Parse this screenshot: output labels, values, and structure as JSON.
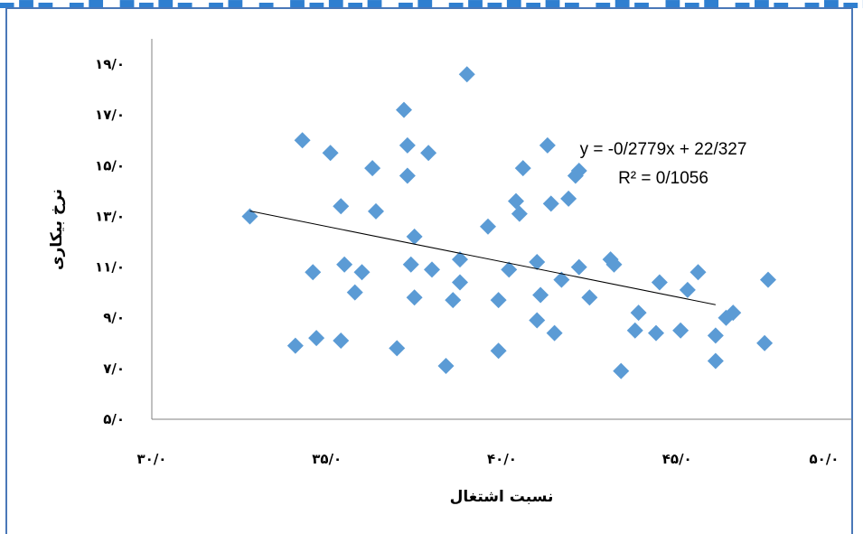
{
  "colors": {
    "marker": "#5b9bd5",
    "trendline": "#000000",
    "axis": "#808080",
    "frame": "#4a78b8",
    "banner": "#2f7fd0"
  },
  "chart_data": {
    "type": "scatter",
    "xlabel": "نسبت اشتغال",
    "ylabel": "نرخ بیکاری",
    "xlim": [
      30,
      50
    ],
    "ylim": [
      5,
      20
    ],
    "grid": false,
    "legend": "none",
    "x_ticks": [
      "۳۰/۰",
      "۳۵/۰",
      "۴۰/۰",
      "۴۵/۰",
      "۵۰/۰"
    ],
    "x_tick_values": [
      30,
      35,
      40,
      45,
      50
    ],
    "y_ticks": [
      "۵/۰",
      "۷/۰",
      "۹/۰",
      "۱۱/۰",
      "۱۳/۰",
      "۱۵/۰",
      "۱۷/۰",
      "۱۹/۰"
    ],
    "y_tick_values": [
      5,
      7,
      9,
      11,
      13,
      15,
      17,
      19
    ],
    "trendline": {
      "equation": "y = -0/2779x + 22/327",
      "r2": "R² = 0/1056",
      "slope": -0.2779,
      "intercept": 22.327,
      "x_range": [
        32.8,
        46.1
      ]
    },
    "points": [
      [
        32.8,
        13.0
      ],
      [
        34.1,
        7.9
      ],
      [
        34.3,
        16.0
      ],
      [
        34.6,
        10.8
      ],
      [
        34.7,
        8.2
      ],
      [
        35.1,
        15.5
      ],
      [
        35.4,
        13.4
      ],
      [
        35.4,
        8.1
      ],
      [
        35.5,
        11.1
      ],
      [
        35.8,
        10.0
      ],
      [
        36.0,
        10.8
      ],
      [
        36.3,
        14.9
      ],
      [
        36.4,
        13.2
      ],
      [
        37.0,
        7.8
      ],
      [
        37.2,
        17.2
      ],
      [
        37.3,
        15.8
      ],
      [
        37.3,
        14.6
      ],
      [
        37.4,
        11.1
      ],
      [
        37.5,
        9.8
      ],
      [
        37.5,
        12.2
      ],
      [
        37.9,
        15.5
      ],
      [
        38.0,
        10.9
      ],
      [
        38.4,
        7.1
      ],
      [
        38.6,
        9.7
      ],
      [
        38.8,
        10.4
      ],
      [
        38.8,
        11.3
      ],
      [
        39.0,
        18.6
      ],
      [
        39.6,
        12.6
      ],
      [
        39.9,
        9.7
      ],
      [
        39.9,
        7.7
      ],
      [
        40.2,
        10.9
      ],
      [
        40.4,
        13.6
      ],
      [
        40.5,
        13.1
      ],
      [
        40.6,
        14.9
      ],
      [
        41.0,
        8.9
      ],
      [
        41.0,
        11.2
      ],
      [
        41.1,
        9.9
      ],
      [
        41.3,
        15.8
      ],
      [
        41.4,
        13.5
      ],
      [
        41.5,
        8.4
      ],
      [
        41.7,
        10.5
      ],
      [
        41.9,
        13.7
      ],
      [
        42.1,
        14.6
      ],
      [
        42.2,
        11.0
      ],
      [
        42.2,
        14.8
      ],
      [
        42.5,
        9.8
      ],
      [
        43.1,
        11.3
      ],
      [
        43.2,
        11.1
      ],
      [
        43.4,
        6.9
      ],
      [
        43.8,
        8.5
      ],
      [
        43.9,
        9.2
      ],
      [
        44.4,
        8.4
      ],
      [
        44.5,
        10.4
      ],
      [
        45.1,
        8.5
      ],
      [
        45.3,
        10.1
      ],
      [
        45.6,
        10.8
      ],
      [
        46.1,
        8.3
      ],
      [
        46.1,
        7.3
      ],
      [
        46.4,
        9.0
      ],
      [
        46.6,
        9.2
      ],
      [
        47.5,
        8.0
      ],
      [
        47.6,
        10.5
      ]
    ]
  }
}
